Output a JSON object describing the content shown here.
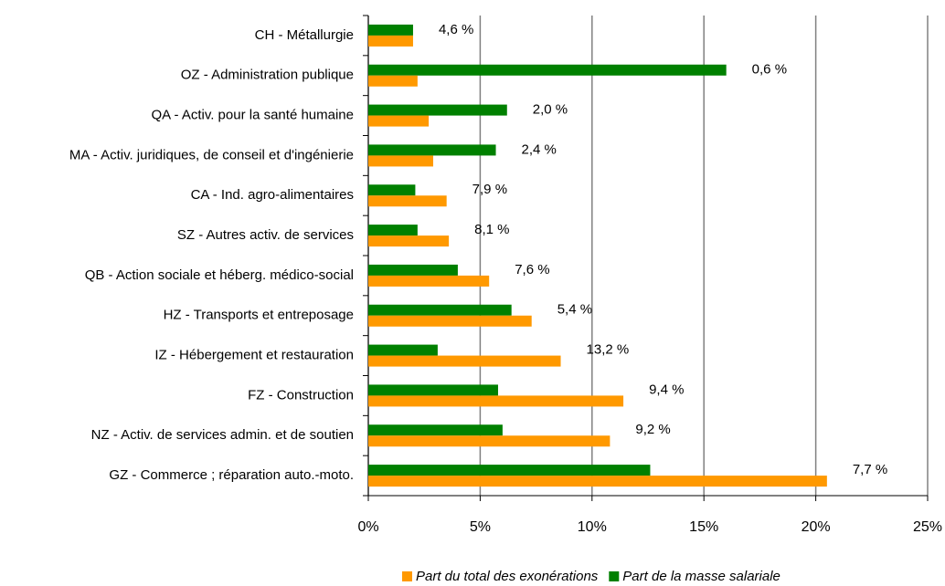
{
  "chart_data": {
    "type": "bar",
    "orientation": "horizontal",
    "categories": [
      "CH - Métallurgie",
      "OZ - Administration publique",
      "QA - Activ. pour la santé humaine",
      "MA - Activ. juridiques, de conseil et d'ingénierie",
      "CA - Ind. agro-alimentaires",
      "SZ - Autres activ. de services",
      "QB - Action sociale et héberg. médico-social",
      "HZ - Transports et entreposage",
      "IZ - Hébergement et restauration",
      "FZ - Construction",
      "NZ - Activ. de services admin. et de soutien",
      "GZ - Commerce ; réparation auto.-moto."
    ],
    "series": [
      {
        "name": "Part du total des exonérations",
        "color": "#ff9900",
        "values": [
          2.0,
          2.2,
          2.7,
          2.9,
          3.5,
          3.6,
          5.4,
          7.3,
          8.6,
          11.4,
          10.8,
          20.5
        ]
      },
      {
        "name": "Part de la masse salariale",
        "color": "#008000",
        "values": [
          2.0,
          16.0,
          6.2,
          5.7,
          2.1,
          2.2,
          4.0,
          6.4,
          3.1,
          5.8,
          6.0,
          12.6
        ]
      }
    ],
    "annotations": [
      "4,6 %",
      "0,6 %",
      "2,0 %",
      "2,4 %",
      "7,9 %",
      "8,1 %",
      "7,6 %",
      "5,4 %",
      "13,2 %",
      "9,4 %",
      "9,2 %",
      "7,7 %"
    ],
    "xlim": [
      0,
      25
    ],
    "xticks": [
      {
        "value": 0,
        "label": "0%"
      },
      {
        "value": 5,
        "label": "5%"
      },
      {
        "value": 10,
        "label": "10%"
      },
      {
        "value": 15,
        "label": "15%"
      },
      {
        "value": 20,
        "label": "20%"
      },
      {
        "value": 25,
        "label": "25%"
      }
    ],
    "grid": true,
    "legend": "bottom"
  }
}
